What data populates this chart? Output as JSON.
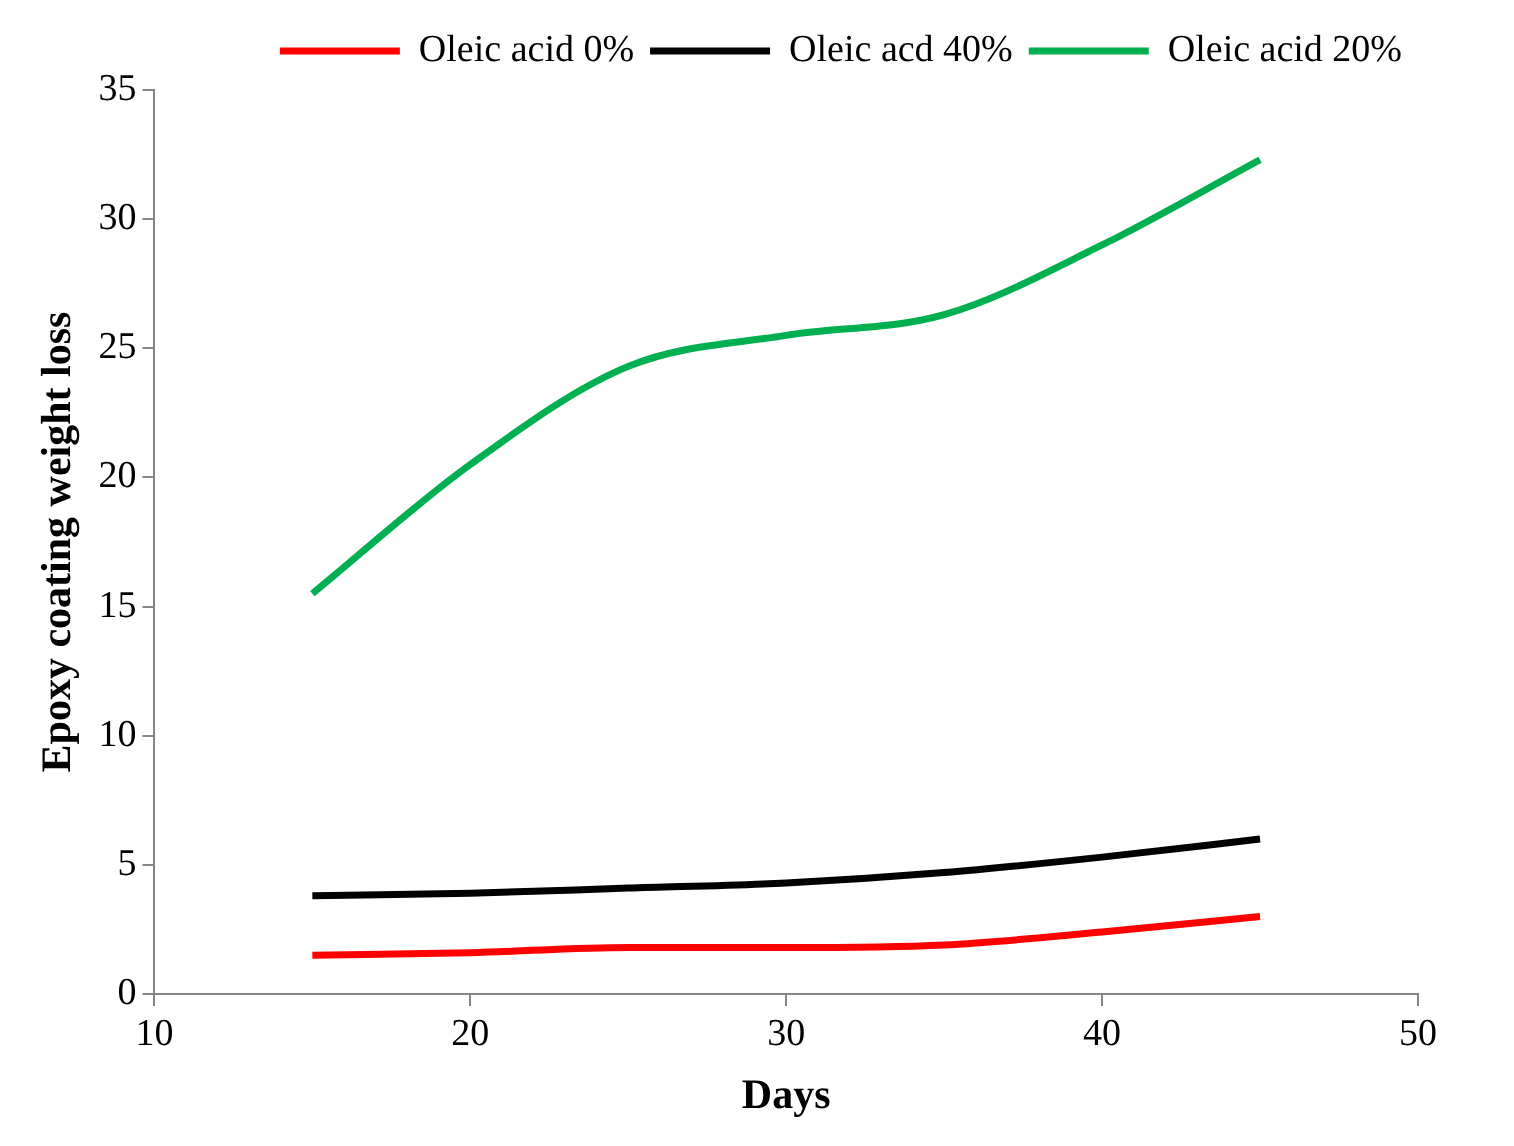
{
  "chart_data": {
    "type": "line",
    "xlabel": "Days",
    "ylabel": "Epoxy coating weight loss",
    "x": [
      15,
      20,
      25,
      30,
      35,
      40,
      45
    ],
    "series": [
      {
        "name": "Oleic acid 0%",
        "color": "#ff0000",
        "values": [
          1.5,
          1.6,
          1.8,
          1.8,
          1.9,
          2.4,
          3.0
        ]
      },
      {
        "name": "Oleic acd 40%",
        "color": "#000000",
        "values": [
          3.8,
          3.9,
          4.1,
          4.3,
          4.7,
          5.3,
          6.0
        ]
      },
      {
        "name": "Oleic acid 20%",
        "color": "#00b050",
        "values": [
          15.5,
          20.5,
          24.3,
          25.5,
          26.3,
          29.0,
          32.3
        ]
      }
    ],
    "xlim": [
      10,
      50
    ],
    "xticks": [
      10,
      20,
      30,
      40,
      50
    ],
    "ylim": [
      0,
      35
    ],
    "yticks": [
      0,
      5,
      10,
      15,
      20,
      25,
      30,
      35
    ],
    "grid": false,
    "legend": "top",
    "marker": "none",
    "line_style": "solid"
  }
}
